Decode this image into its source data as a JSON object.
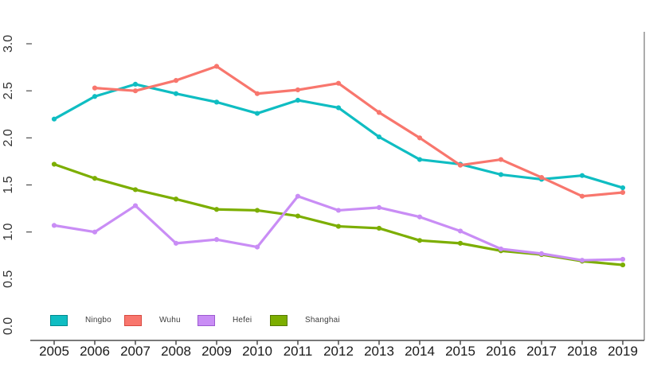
{
  "chart_data": {
    "type": "line",
    "title": "",
    "xlabel": "",
    "ylabel": "",
    "x": [
      2005,
      2006,
      2007,
      2008,
      2009,
      2010,
      2011,
      2012,
      2013,
      2014,
      2015,
      2016,
      2017,
      2018,
      2019
    ],
    "x_tick_labels": [
      "2005",
      "2006",
      "2007",
      "2008",
      "2009",
      "2010",
      "2011",
      "2012",
      "2013",
      "2014",
      "2015",
      "2016",
      "2017",
      "2018",
      "2019"
    ],
    "ylim": [
      0.0,
      3.0
    ],
    "y_ticks": [
      0.0,
      0.5,
      1.0,
      1.5,
      2.0,
      2.5,
      3.0
    ],
    "y_tick_labels": [
      "0.0",
      "0.5",
      "1.0",
      "1.5",
      "2.0",
      "2.5",
      "3.0"
    ],
    "grid": "off",
    "legend_position": "inside-bottom-left",
    "series": [
      {
        "name": "Ningbo",
        "color": "#0FBDC2",
        "swatch_border": "#00898E",
        "values": [
          2.2,
          2.44,
          2.57,
          2.47,
          2.38,
          2.26,
          2.4,
          2.32,
          2.01,
          1.77,
          1.72,
          1.61,
          1.56,
          1.6,
          1.47
        ]
      },
      {
        "name": "Wuhu",
        "color": "#F8766D",
        "swatch_border": "#D84A41",
        "values": [
          null,
          2.53,
          2.5,
          2.61,
          2.76,
          2.47,
          2.51,
          2.58,
          2.27,
          2.0,
          1.71,
          1.77,
          1.58,
          1.38,
          1.42
        ]
      },
      {
        "name": "Hefei",
        "color": "#C98DF5",
        "swatch_border": "#9C5AD1",
        "values": [
          1.07,
          1.0,
          1.28,
          0.88,
          0.92,
          0.84,
          1.38,
          1.23,
          1.26,
          1.16,
          1.01,
          0.82,
          0.77,
          0.7,
          0.71
        ]
      },
      {
        "name": "Shanghai",
        "color": "#7CAE00",
        "swatch_border": "#557800",
        "values": [
          1.72,
          1.57,
          1.45,
          1.35,
          1.24,
          1.23,
          1.17,
          1.06,
          1.04,
          0.91,
          0.88,
          0.8,
          0.76,
          0.69,
          0.65
        ]
      }
    ],
    "draw_order": [
      "Shanghai",
      "Ningbo",
      "Wuhu",
      "Hefei"
    ],
    "colors": {
      "axis": "#4D4D4D",
      "right_border": "#7F7F7F",
      "x_tick_text": "#1A1A1A",
      "y_tick_text": "#333333",
      "legend_text": "#3D3D3D"
    }
  }
}
